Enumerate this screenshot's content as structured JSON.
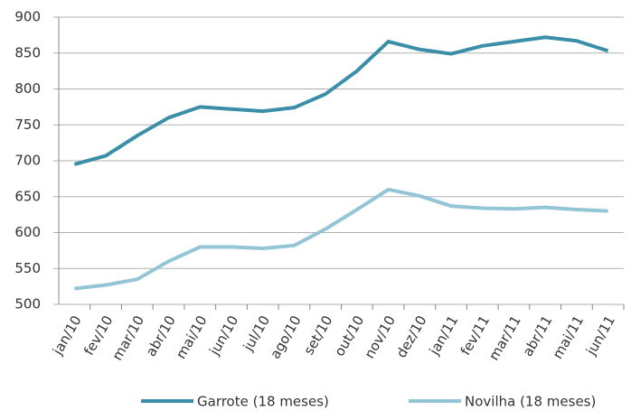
{
  "chart_data": {
    "type": "line",
    "categories": [
      "jan/10",
      "fev/10",
      "mar/10",
      "abr/10",
      "mai/10",
      "jun/10",
      "jul/10",
      "ago/10",
      "set/10",
      "out/10",
      "nov/10",
      "dez/10",
      "jan/11",
      "fev/11",
      "mar/11",
      "abr/11",
      "mai/11",
      "jun/11"
    ],
    "series": [
      {
        "name": "Garrote (18 meses)",
        "color": "#3a8ea8",
        "values": [
          695,
          707,
          735,
          760,
          775,
          772,
          769,
          774,
          793,
          825,
          866,
          855,
          849,
          860,
          866,
          872,
          867,
          853
        ]
      },
      {
        "name": "Novilha (18 meses)",
        "color": "#93c5d7",
        "values": [
          522,
          527,
          535,
          560,
          580,
          580,
          578,
          582,
          605,
          632,
          660,
          651,
          637,
          634,
          633,
          635,
          632,
          630
        ]
      }
    ],
    "ylim": [
      500,
      900
    ],
    "yticks": [
      500,
      550,
      600,
      650,
      700,
      750,
      800,
      850,
      900
    ],
    "grid": true,
    "legend": "bottom"
  }
}
